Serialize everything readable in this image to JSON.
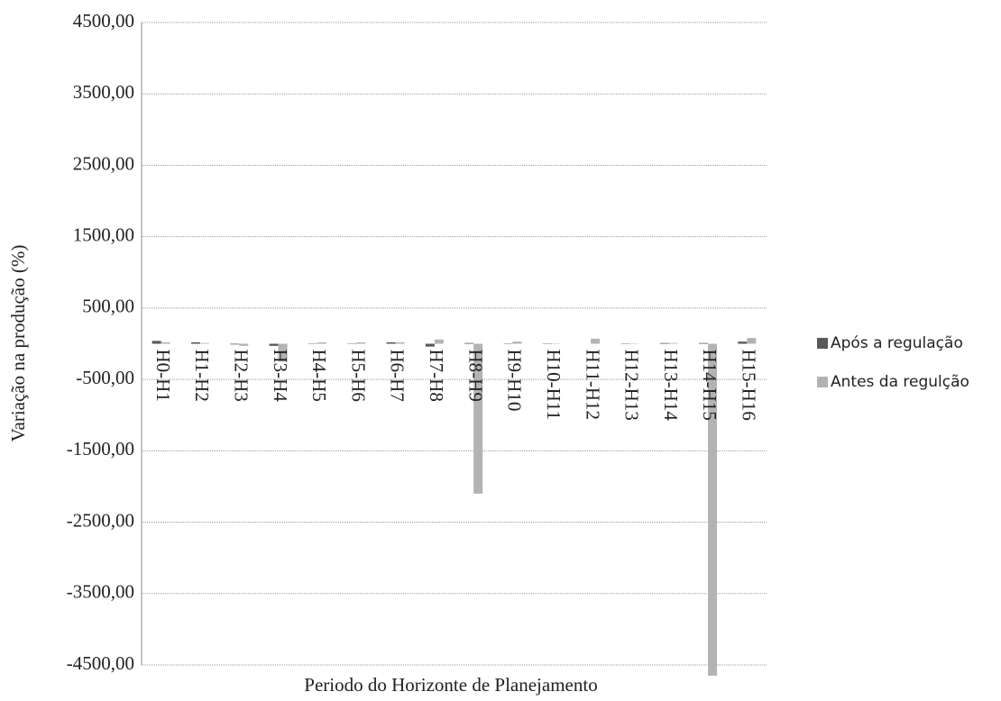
{
  "chart_data": {
    "type": "bar",
    "y_label": "Variação na produção (%)",
    "x_label": "Periodo do Horizonte de Planejamento",
    "categories": [
      "H0-H1",
      "H1-H2",
      "H2-H3",
      "H3-H4",
      "H4-H5",
      "H5-H6",
      "H6-H7",
      "H7-H8",
      "H8-H9",
      "H9-H10",
      "H10-H11",
      "H11-H12",
      "H12-H13",
      "H13-H14",
      "H14-H15",
      "H15-H16"
    ],
    "series": [
      {
        "name": "Após a regulação",
        "color": "#595959",
        "values": [
          40,
          20,
          -10,
          -30,
          5,
          5,
          20,
          -40,
          10,
          5,
          5,
          0,
          5,
          10,
          10,
          30
        ]
      },
      {
        "name": "Antes da regulção",
        "color": "#b3b3b3",
        "values": [
          20,
          10,
          -30,
          -250,
          20,
          20,
          20,
          60,
          -2100,
          30,
          5,
          70,
          5,
          10,
          -4650,
          80
        ]
      }
    ],
    "ylim": [
      -4500,
      4500
    ],
    "yticks": [
      {
        "value": 4500,
        "label": "4500,00"
      },
      {
        "value": 3500,
        "label": "3500,00"
      },
      {
        "value": 2500,
        "label": "2500,00"
      },
      {
        "value": 1500,
        "label": "1500,00"
      },
      {
        "value": 500,
        "label": "500,00"
      },
      {
        "value": -500,
        "label": "-500,00"
      },
      {
        "value": -1500,
        "label": "-1500,00"
      },
      {
        "value": -2500,
        "label": "-2500,00"
      },
      {
        "value": -3500,
        "label": "-3500,00"
      },
      {
        "value": -4500,
        "label": "-4500,00"
      }
    ],
    "grid": true,
    "legend": "right"
  }
}
